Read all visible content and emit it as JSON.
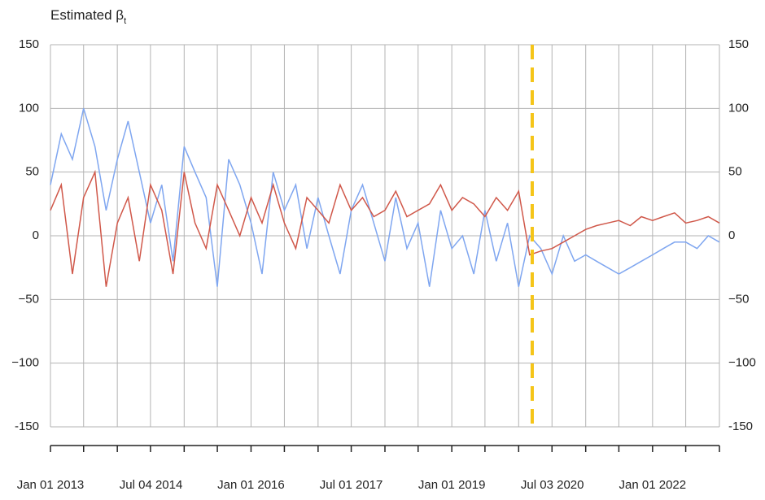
{
  "chart_data": {
    "type": "line",
    "title": "Estimated β",
    "title_subscript": "t",
    "x": [
      "2013-01-01",
      "2013-03-01",
      "2013-05-01",
      "2013-07-01",
      "2013-09-01",
      "2013-11-01",
      "2014-01-01",
      "2014-03-01",
      "2014-05-01",
      "2014-07-01",
      "2014-09-01",
      "2014-11-01",
      "2015-01-01",
      "2015-03-01",
      "2015-05-01",
      "2015-07-01",
      "2015-09-01",
      "2015-11-01",
      "2016-01-01",
      "2016-03-01",
      "2016-05-01",
      "2016-07-01",
      "2016-09-01",
      "2016-11-01",
      "2017-01-01",
      "2017-03-01",
      "2017-05-01",
      "2017-07-01",
      "2017-09-01",
      "2017-11-01",
      "2018-01-01",
      "2018-03-01",
      "2018-05-01",
      "2018-07-01",
      "2018-09-01",
      "2018-11-01",
      "2019-01-01",
      "2019-03-01",
      "2019-05-01",
      "2019-07-01",
      "2019-09-01",
      "2019-11-01",
      "2020-01-01",
      "2020-03-01",
      "2020-05-01",
      "2020-07-01",
      "2020-09-01",
      "2020-11-01",
      "2021-01-01",
      "2021-03-01",
      "2021-05-01",
      "2021-07-01",
      "2021-09-01",
      "2021-11-01",
      "2022-01-01",
      "2022-03-01",
      "2022-05-01",
      "2022-07-01",
      "2022-09-01",
      "2022-11-01",
      "2023-01-01"
    ],
    "series": [
      {
        "name": "blue",
        "color": "#7fa6f0",
        "values": [
          40,
          80,
          60,
          100,
          70,
          20,
          60,
          90,
          50,
          10,
          40,
          -20,
          70,
          50,
          30,
          -40,
          60,
          40,
          10,
          -30,
          50,
          20,
          40,
          -10,
          30,
          0,
          -30,
          20,
          40,
          10,
          -20,
          30,
          -10,
          10,
          -40,
          20,
          -10,
          0,
          -30,
          20,
          -20,
          10,
          -40,
          0,
          -10,
          -30,
          0,
          -20,
          -15,
          -20,
          -25,
          -30,
          -25,
          -20,
          -15,
          -10,
          -5,
          -5,
          -10,
          0,
          -5
        ]
      },
      {
        "name": "red",
        "color": "#d0584a",
        "values": [
          20,
          40,
          -30,
          30,
          50,
          -40,
          10,
          30,
          -20,
          40,
          20,
          -30,
          50,
          10,
          -10,
          40,
          20,
          0,
          30,
          10,
          40,
          10,
          -10,
          30,
          20,
          10,
          40,
          20,
          30,
          15,
          20,
          35,
          15,
          20,
          25,
          40,
          20,
          30,
          25,
          15,
          30,
          20,
          35,
          -15,
          -12,
          -10,
          -5,
          0,
          5,
          8,
          10,
          12,
          8,
          15,
          12,
          15,
          18,
          10,
          12,
          15,
          10
        ]
      }
    ],
    "vline": {
      "x": "2020-03-15",
      "color": "#f5c518"
    },
    "xlim": [
      "2013-01-01",
      "2023-01-01"
    ],
    "xticks": [
      {
        "value": "2013-01-01",
        "label": "Jan 01 2013"
      },
      {
        "value": "2014-07-04",
        "label": "Jul 04 2014"
      },
      {
        "value": "2016-01-01",
        "label": "Jan 01 2016"
      },
      {
        "value": "2017-07-01",
        "label": "Jul 01 2017"
      },
      {
        "value": "2019-01-01",
        "label": "Jan 01 2019"
      },
      {
        "value": "2020-07-03",
        "label": "Jul 03 2020"
      },
      {
        "value": "2022-01-01",
        "label": "Jan 01 2022"
      }
    ],
    "xminor_ticks": [
      "2013-01-01",
      "2013-07-01",
      "2014-01-01",
      "2014-07-01",
      "2015-01-01",
      "2015-07-01",
      "2016-01-01",
      "2016-07-01",
      "2017-01-01",
      "2017-07-01",
      "2018-01-01",
      "2018-07-01",
      "2019-01-01",
      "2019-07-01",
      "2020-01-01",
      "2020-07-01",
      "2021-01-01",
      "2021-07-01",
      "2022-01-01",
      "2022-07-01",
      "2023-01-01"
    ],
    "ylim": [
      -150,
      150
    ],
    "yticks": [
      -150,
      {
        "value": -100,
        "label": "−100"
      },
      {
        "value": -50,
        "label": "−50"
      },
      0,
      50,
      100,
      150
    ],
    "grid": true
  }
}
